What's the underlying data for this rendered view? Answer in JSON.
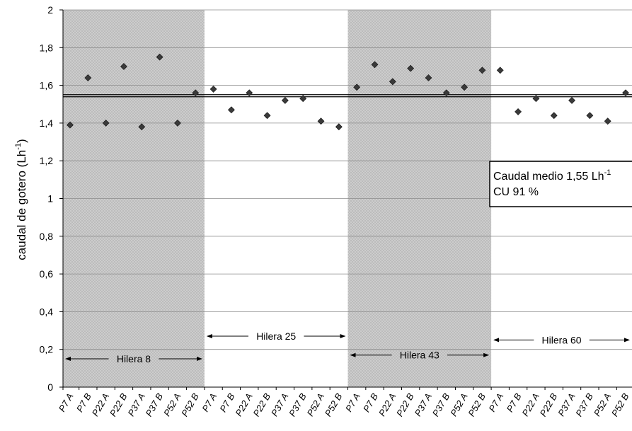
{
  "chart_data": {
    "type": "scatter",
    "ylabel": "caudal de gotero (Lh",
    "ylabel_sup": "-1",
    "ylabel_end": ")",
    "ylim": [
      0,
      2
    ],
    "yticks": [
      "0",
      "0,2",
      "0,4",
      "0,6",
      "0,8",
      "1",
      "1,2",
      "1,4",
      "1,6",
      "1,8",
      "2"
    ],
    "grid": true,
    "categories": [
      "P7 A",
      "P7 B",
      "P22 A",
      "P22 B",
      "P37 A",
      "P37 B",
      "P52 A",
      "P52 B",
      "P7 A",
      "P7 B",
      "P22 A",
      "P22 B",
      "P37 A",
      "P37 B",
      "P52 A",
      "P52 B",
      "P7 A",
      "P7 B",
      "P22 A",
      "P22 B",
      "P37 A",
      "P37 B",
      "P52 A",
      "P52 B",
      "P7 A",
      "P7 B",
      "P22 A",
      "P22 B",
      "P37 A",
      "P37 B",
      "P52 A",
      "P52 B"
    ],
    "values": [
      1.39,
      1.64,
      1.4,
      1.7,
      1.38,
      1.75,
      1.4,
      1.56,
      1.58,
      1.47,
      1.56,
      1.44,
      1.52,
      1.53,
      1.41,
      1.38,
      1.59,
      1.71,
      1.62,
      1.69,
      1.64,
      1.56,
      1.59,
      1.68,
      1.68,
      1.46,
      1.53,
      1.44,
      1.52,
      1.44,
      1.41,
      1.56
    ],
    "mean_line": 1.545,
    "groups": [
      {
        "label": "Hilera 8",
        "start": 0,
        "end": 8,
        "shaded": true,
        "arrow_y": 0.15
      },
      {
        "label": "Hilera 25",
        "start": 8,
        "end": 16,
        "shaded": false,
        "arrow_y": 0.27
      },
      {
        "label": "Hilera 43",
        "start": 16,
        "end": 24,
        "shaded": true,
        "arrow_y": 0.17
      },
      {
        "label": "Hilera 60",
        "start": 24,
        "end": 32,
        "shaded": false,
        "arrow_y": 0.25
      }
    ],
    "info_box": {
      "line1": "Caudal medio 1,55 Lh",
      "line1_sup": "-1",
      "line2": "CU 91 %"
    },
    "colors": {
      "shade": "#c8c8c8",
      "marker": "#3a3a3a",
      "grid": "#8c8c8c",
      "mean_line": "#000000"
    }
  }
}
